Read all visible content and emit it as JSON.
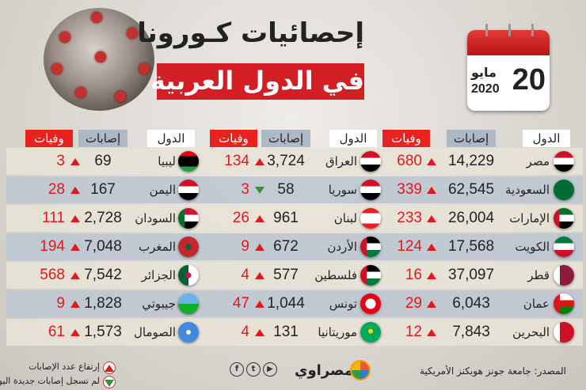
{
  "header": {
    "title_line1": "إحصائيات كـورونا",
    "title_line2": "في الدول العربية"
  },
  "calendar": {
    "day": "20",
    "month": "مايو",
    "year": "2020"
  },
  "columns": {
    "country": "الدول",
    "cases": "إصابات",
    "deaths": "وفيات"
  },
  "groups": [
    {
      "rows": [
        {
          "country": "مصر",
          "cases": "14,229",
          "deaths": "680",
          "trend": "up",
          "flag": "egypt"
        },
        {
          "country": "السعودية",
          "cases": "62,545",
          "deaths": "339",
          "trend": "up",
          "flag": "saudi"
        },
        {
          "country": "الإمارات",
          "cases": "26,004",
          "deaths": "233",
          "trend": "up",
          "flag": "uae"
        },
        {
          "country": "الكويت",
          "cases": "17,568",
          "deaths": "124",
          "trend": "up",
          "flag": "kuwait"
        },
        {
          "country": "قطر",
          "cases": "37,097",
          "deaths": "16",
          "trend": "up",
          "flag": "qatar"
        },
        {
          "country": "عمان",
          "cases": "6,043",
          "deaths": "29",
          "trend": "up",
          "flag": "oman"
        },
        {
          "country": "البحرين",
          "cases": "7,843",
          "deaths": "12",
          "trend": "up",
          "flag": "bahrain"
        }
      ]
    },
    {
      "rows": [
        {
          "country": "العراق",
          "cases": "3,724",
          "deaths": "134",
          "trend": "up",
          "flag": "iraq"
        },
        {
          "country": "سوريا",
          "cases": "58",
          "deaths": "3",
          "trend": "down",
          "flag": "syria"
        },
        {
          "country": "لبنان",
          "cases": "961",
          "deaths": "26",
          "trend": "up",
          "flag": "lebanon"
        },
        {
          "country": "الأردن",
          "cases": "672",
          "deaths": "9",
          "trend": "up",
          "flag": "jordan"
        },
        {
          "country": "فلسطين",
          "cases": "577",
          "deaths": "4",
          "trend": "up",
          "flag": "palestine"
        },
        {
          "country": "تونس",
          "cases": "1,044",
          "deaths": "47",
          "trend": "up",
          "flag": "tunisia"
        },
        {
          "country": "موريتانيا",
          "cases": "131",
          "deaths": "4",
          "trend": "up",
          "flag": "mauritania"
        }
      ]
    },
    {
      "rows": [
        {
          "country": "ليبيا",
          "cases": "69",
          "deaths": "3",
          "trend": "up",
          "flag": "libya"
        },
        {
          "country": "اليمن",
          "cases": "167",
          "deaths": "28",
          "trend": "up",
          "flag": "yemen"
        },
        {
          "country": "السودان",
          "cases": "2,728",
          "deaths": "111",
          "trend": "up",
          "flag": "sudan"
        },
        {
          "country": "المغرب",
          "cases": "7,048",
          "deaths": "194",
          "trend": "up",
          "flag": "morocco"
        },
        {
          "country": "الجزائر",
          "cases": "7,542",
          "deaths": "568",
          "trend": "up",
          "flag": "algeria"
        },
        {
          "country": "جيبوتي",
          "cases": "1,828",
          "deaths": "9",
          "trend": "up",
          "flag": "djibouti"
        },
        {
          "country": "الصومال",
          "cases": "1,573",
          "deaths": "61",
          "trend": "up",
          "flag": "somalia"
        }
      ]
    }
  ],
  "legend": {
    "up": "إرتفاع عدد الإصابات",
    "down": "لم تسجل إصابات جديدة اليوم"
  },
  "source": "المصدر: جامعة جونز هوبكنز الأمريكية",
  "brand": "مصراوي",
  "colors": {
    "accent": "#d11f25",
    "up": "#e0191e",
    "down": "#3a8f3a"
  }
}
